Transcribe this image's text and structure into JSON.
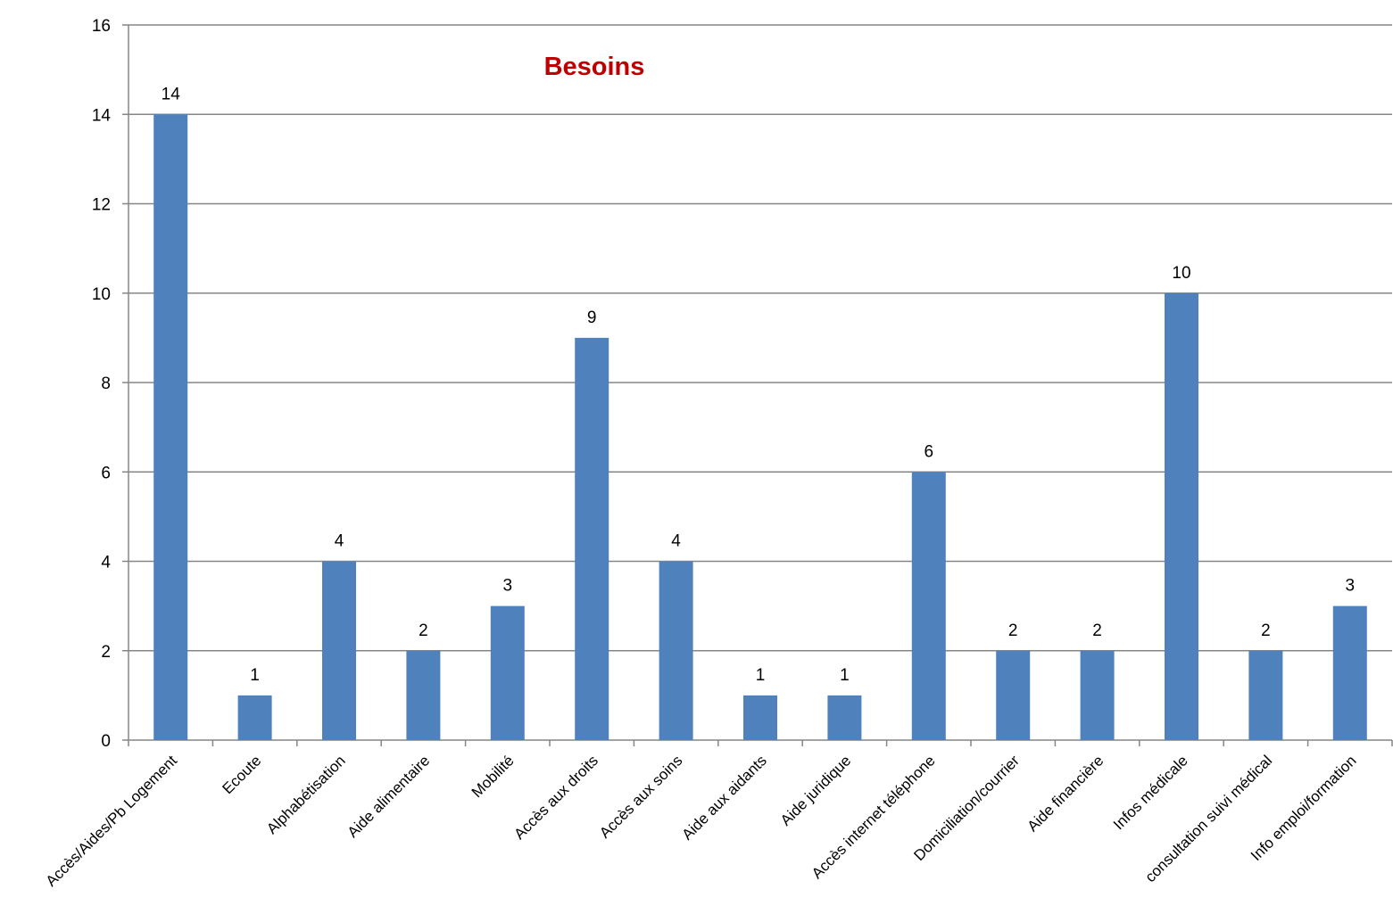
{
  "chart_data": {
    "type": "bar",
    "title": "Besoins",
    "xlabel": "",
    "ylabel": "",
    "ylim": [
      0,
      16
    ],
    "yticks": [
      0,
      2,
      4,
      6,
      8,
      10,
      12,
      14,
      16
    ],
    "grid": true,
    "legend": "none",
    "categories": [
      "Accès/Aides/Pb Logement",
      "Ecoute",
      "Alphabétisation",
      "Aide alimentaire",
      "Mobilité",
      "Accès aux droits",
      "Accès aux soins",
      "Aide aux aidants",
      "Aide juridique",
      "Accès internet téléphone",
      "Domiciliation/courrier",
      "Aide financière",
      "Infos médicale",
      "consultation suivi médical",
      "Info emploi/formation"
    ],
    "values": [
      14,
      1,
      4,
      2,
      3,
      9,
      4,
      1,
      1,
      6,
      2,
      2,
      10,
      2,
      3
    ],
    "bar_color": "#4f81bd",
    "grid_color": "#868686",
    "title_color": "#c00000"
  }
}
